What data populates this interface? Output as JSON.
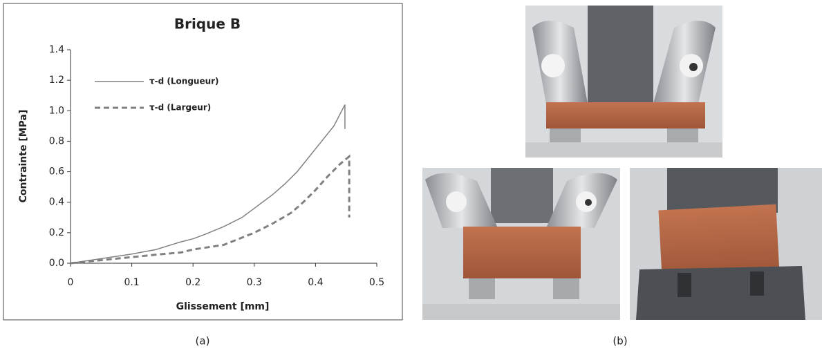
{
  "chart_data": {
    "type": "line",
    "title": "Brique B",
    "xlabel": "Glissement [mm]",
    "ylabel": "Contrainte [MPa]",
    "xlim": [
      0,
      0.5
    ],
    "xticks": [
      0,
      0.1,
      0.2,
      0.3,
      0.4,
      0.5
    ],
    "ylim": [
      0,
      1.4
    ],
    "yticks": [
      {
        "value": 0,
        "label": "0.0"
      },
      {
        "value": 0.2,
        "label": "0.2"
      },
      {
        "value": 0.4,
        "label": "0.4"
      },
      {
        "value": 0.6,
        "label": "0.6"
      },
      {
        "value": 0.8,
        "label": "0.8"
      },
      {
        "value": 1.0,
        "label": "1.0"
      },
      {
        "value": 1.2,
        "label": "1.2"
      },
      {
        "value": 1.4,
        "label": "1.4"
      }
    ],
    "legend": "upper left",
    "grid": false,
    "series": [
      {
        "name": "τ-d (Longueur)",
        "color": "#808080",
        "dash": false,
        "x": [
          0,
          0.05,
          0.1,
          0.14,
          0.18,
          0.2,
          0.22,
          0.25,
          0.28,
          0.3,
          0.33,
          0.35,
          0.37,
          0.39,
          0.41,
          0.43,
          0.448,
          0.448
        ],
        "values": [
          0,
          0.03,
          0.06,
          0.09,
          0.14,
          0.16,
          0.19,
          0.24,
          0.3,
          0.36,
          0.45,
          0.52,
          0.6,
          0.7,
          0.8,
          0.9,
          1.04,
          0.88
        ]
      },
      {
        "name": "τ-d (Largeur)",
        "color": "#808080",
        "dash": true,
        "x": [
          0,
          0.05,
          0.1,
          0.15,
          0.18,
          0.2,
          0.25,
          0.3,
          0.33,
          0.36,
          0.38,
          0.4,
          0.42,
          0.44,
          0.455,
          0.455
        ],
        "values": [
          0,
          0.02,
          0.04,
          0.06,
          0.07,
          0.09,
          0.12,
          0.2,
          0.26,
          0.33,
          0.4,
          0.48,
          0.57,
          0.65,
          0.7,
          0.3
        ]
      }
    ]
  },
  "captions": {
    "a": "(a)",
    "b": "(b)"
  }
}
